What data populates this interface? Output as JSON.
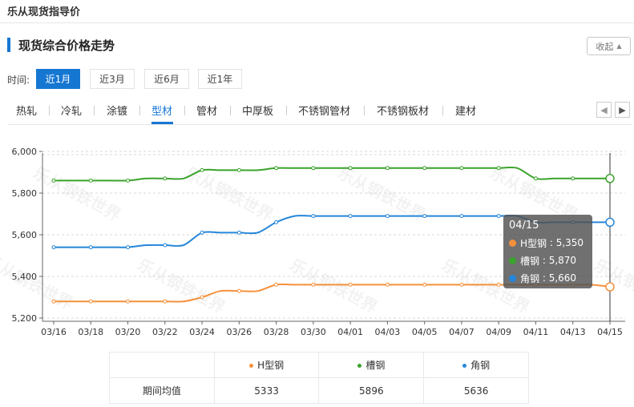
{
  "page": {
    "title": "乐从现货指导价"
  },
  "section": {
    "title": "现货综合价格走势",
    "collapse_label": "收起"
  },
  "period": {
    "label": "时间:",
    "options": [
      "近1月",
      "近3月",
      "近6月",
      "近1年"
    ],
    "selected": "近1月"
  },
  "tabs": [
    "热轧",
    "冷轧",
    "涂镀",
    "型材",
    "管材",
    "中厚板",
    "不锈钢管材",
    "不锈钢板材",
    "建材"
  ],
  "active_tab": "型材",
  "watermark": "乐从钢铁世界",
  "tooltip": {
    "date": "04/15",
    "rows": [
      {
        "name": "H型钢",
        "value": "5,350"
      },
      {
        "name": "槽钢",
        "value": "5,870"
      },
      {
        "name": "角钢",
        "value": "5,660"
      }
    ]
  },
  "chart_data": {
    "type": "line",
    "x": [
      "03/16",
      "03/17",
      "03/18",
      "03/19",
      "03/20",
      "03/21",
      "03/22",
      "03/23",
      "03/24",
      "03/25",
      "03/26",
      "03/27",
      "03/28",
      "03/29",
      "03/30",
      "03/31",
      "04/01",
      "04/02",
      "04/03",
      "04/04",
      "04/05",
      "04/06",
      "04/07",
      "04/08",
      "04/09",
      "04/10",
      "04/11",
      "04/12",
      "04/13",
      "04/14",
      "04/15"
    ],
    "x_tick_labels": [
      "03/16",
      "03/18",
      "03/20",
      "03/22",
      "03/24",
      "03/26",
      "03/28",
      "03/30",
      "04/01",
      "04/03",
      "04/05",
      "04/07",
      "04/09",
      "04/11",
      "04/13",
      "04/15"
    ],
    "y_ticks": [
      "5,200",
      "5,400",
      "5,600",
      "5,800",
      "6,000"
    ],
    "ylim": [
      5200,
      6000
    ],
    "grid": true,
    "series": [
      {
        "name": "H型钢",
        "color": "#f5913c",
        "values": [
          5280,
          5280,
          5280,
          5280,
          5280,
          5280,
          5280,
          5280,
          5300,
          5330,
          5330,
          5330,
          5360,
          5360,
          5360,
          5360,
          5360,
          5360,
          5360,
          5360,
          5360,
          5360,
          5360,
          5360,
          5360,
          5360,
          5360,
          5360,
          5360,
          5360,
          5350
        ]
      },
      {
        "name": "槽钢",
        "color": "#3aa32b",
        "values": [
          5860,
          5860,
          5860,
          5860,
          5860,
          5870,
          5870,
          5870,
          5910,
          5910,
          5910,
          5910,
          5920,
          5920,
          5920,
          5920,
          5920,
          5920,
          5920,
          5920,
          5920,
          5920,
          5920,
          5920,
          5920,
          5920,
          5870,
          5870,
          5870,
          5870,
          5870
        ]
      },
      {
        "name": "角钢",
        "color": "#2586d9",
        "values": [
          5540,
          5540,
          5540,
          5540,
          5540,
          5550,
          5550,
          5550,
          5610,
          5610,
          5610,
          5610,
          5660,
          5690,
          5690,
          5690,
          5690,
          5690,
          5690,
          5690,
          5690,
          5690,
          5690,
          5690,
          5690,
          5690,
          5660,
          5660,
          5660,
          5660,
          5660
        ]
      }
    ]
  },
  "averages": {
    "row_label": "期间均值",
    "columns": [
      {
        "name": "H型钢",
        "value": "5333",
        "color": "#f5913c"
      },
      {
        "name": "槽钢",
        "value": "5896",
        "color": "#3aa32b"
      },
      {
        "name": "角钢",
        "value": "5636",
        "color": "#2586d9"
      }
    ]
  }
}
